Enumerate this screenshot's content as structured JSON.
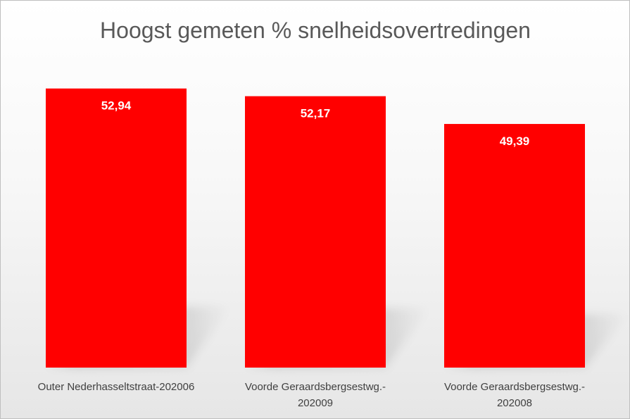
{
  "chart_data": {
    "type": "bar",
    "title": "Hoogst gemeten % snelheidsovertredingen",
    "categories": [
      [
        "Outer Nederhasseltstraat-202006"
      ],
      [
        "Voorde Geraardsbergsestwg.-",
        "202009"
      ],
      [
        "Voorde Geraardsbergsestwg.-",
        "202008"
      ]
    ],
    "values": [
      52.94,
      52.17,
      49.39
    ],
    "value_labels": [
      "52,94",
      "52,17",
      "49,39"
    ],
    "xlabel": "",
    "ylabel": "",
    "ylim": [
      25,
      57.5
    ],
    "grid": false,
    "legend": "none",
    "bar_color": "#ff0000",
    "title_color": "#595959",
    "label_color": "#404040"
  }
}
